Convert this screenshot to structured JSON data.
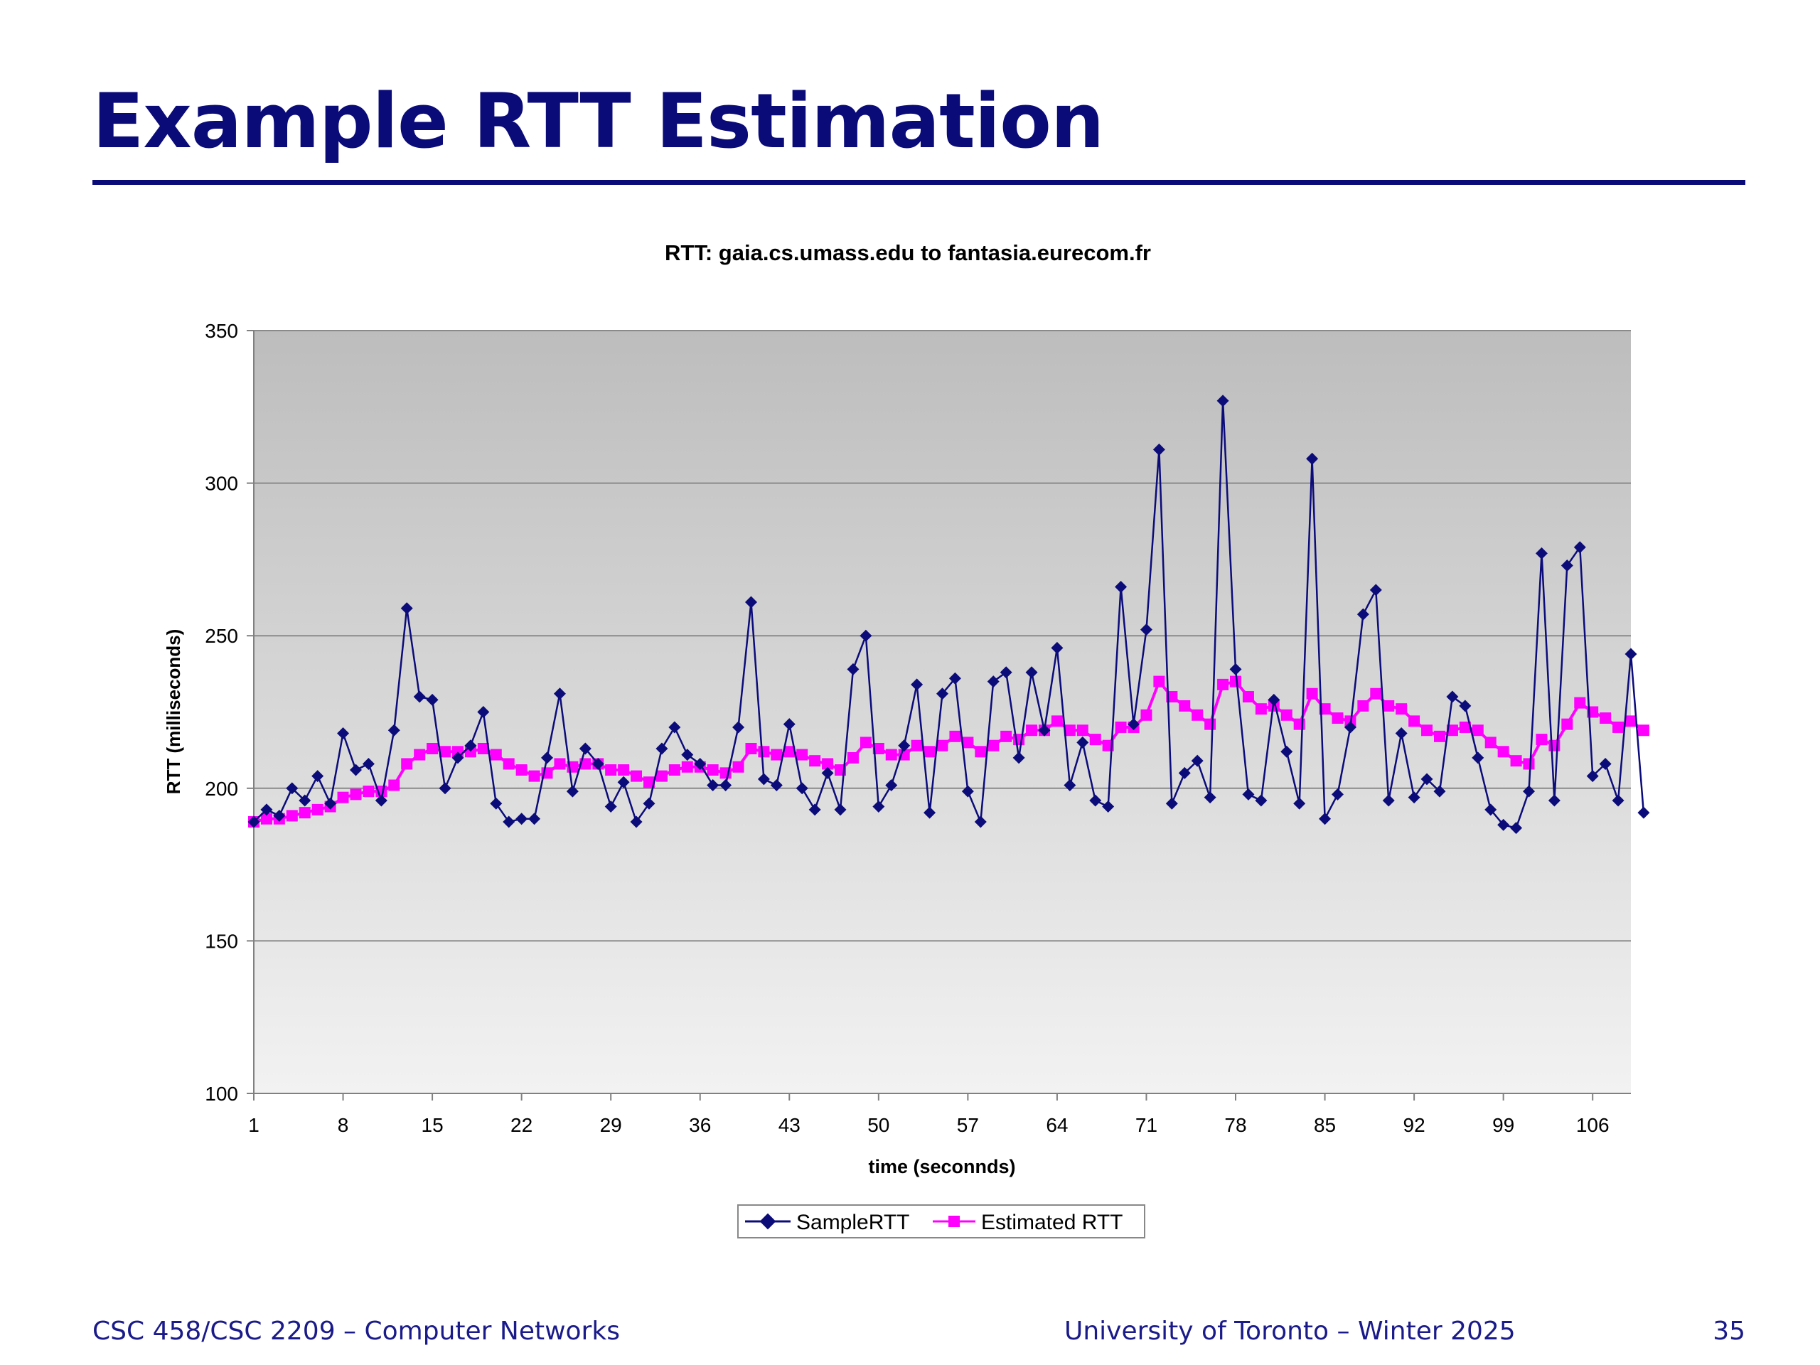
{
  "slide": {
    "title": "Example RTT Estimation"
  },
  "footer": {
    "course": "CSC 458/CSC 2209 – Computer Networks",
    "institution": "University of Toronto – Winter 2025",
    "page_number": "35"
  },
  "colors": {
    "title": "#0a0a78",
    "sample_series": "#0b0b7a",
    "estimated_series": "#ff00ff",
    "plot_bg_top": "#bdbdbd",
    "plot_bg_bottom": "#f2f2f2"
  },
  "chart_data": {
    "type": "line",
    "title": "RTT: gaia.cs.umass.edu to fantasia.eurecom.fr",
    "xlabel": "time (seconnds)",
    "ylabel": "RTT (milliseconds)",
    "xlim": [
      1,
      109
    ],
    "ylim": [
      100,
      350
    ],
    "yticks": [
      100,
      150,
      200,
      250,
      300,
      350
    ],
    "xticks": [
      1,
      8,
      15,
      22,
      29,
      36,
      43,
      50,
      57,
      64,
      71,
      78,
      85,
      92,
      99,
      106
    ],
    "grid": "horizontal",
    "legend": "bottom-center",
    "series": [
      {
        "name": "SampleRTT",
        "marker": "diamond",
        "values": [
          189,
          193,
          191,
          200,
          196,
          204,
          195,
          218,
          206,
          208,
          196,
          219,
          259,
          230,
          229,
          200,
          210,
          214,
          225,
          195,
          189,
          190,
          190,
          210,
          231,
          199,
          213,
          208,
          194,
          202,
          189,
          195,
          213,
          220,
          211,
          208,
          201,
          201,
          220,
          261,
          203,
          201,
          221,
          200,
          193,
          205,
          193,
          239,
          250,
          194,
          201,
          214,
          234,
          192,
          231,
          236,
          199,
          189,
          235,
          238,
          210,
          238,
          219,
          246,
          201,
          215,
          196,
          194,
          266,
          221,
          252,
          311,
          195,
          205,
          209,
          197,
          327,
          239,
          198,
          196,
          229,
          212,
          195,
          308,
          190,
          198,
          220,
          257,
          265,
          196,
          218,
          197,
          203,
          199,
          230,
          227,
          210,
          193,
          188,
          187,
          199,
          277,
          196,
          273,
          279,
          204,
          208,
          196,
          244,
          192
        ]
      },
      {
        "name": "Estimated RTT",
        "marker": "square",
        "values": [
          189,
          190,
          190,
          191,
          192,
          193,
          194,
          197,
          198,
          199,
          199,
          201,
          208,
          211,
          213,
          212,
          212,
          212,
          213,
          211,
          208,
          206,
          204,
          205,
          208,
          207,
          208,
          208,
          206,
          206,
          204,
          202,
          204,
          206,
          207,
          207,
          206,
          205,
          207,
          213,
          212,
          211,
          212,
          211,
          209,
          208,
          206,
          210,
          215,
          213,
          211,
          211,
          214,
          212,
          214,
          217,
          215,
          212,
          214,
          217,
          216,
          219,
          219,
          222,
          219,
          219,
          216,
          214,
          220,
          220,
          224,
          235,
          230,
          227,
          224,
          221,
          234,
          235,
          230,
          226,
          227,
          224,
          221,
          231,
          226,
          223,
          222,
          227,
          231,
          227,
          226,
          222,
          219,
          217,
          219,
          220,
          219,
          215,
          212,
          209,
          208,
          216,
          214,
          221,
          228,
          225,
          223,
          220,
          222,
          219
        ]
      }
    ]
  }
}
